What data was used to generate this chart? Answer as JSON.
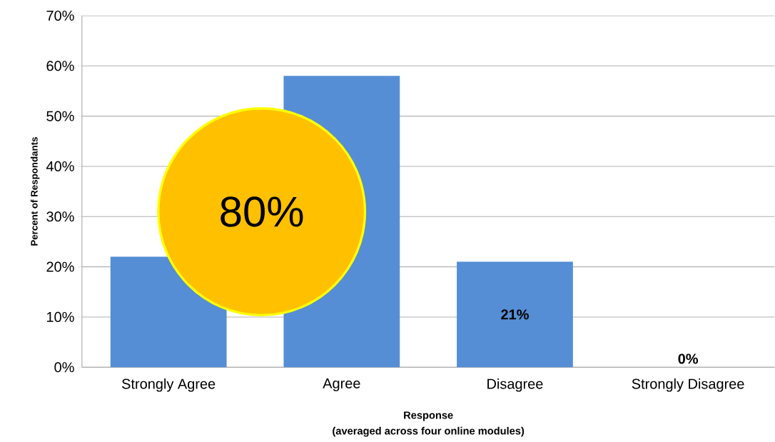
{
  "chart_data": {
    "type": "bar",
    "ylabel": "Percent of Respondants",
    "xlabel": "Response",
    "categories": [
      "Strongly Agree",
      "Agree",
      "Disagree",
      "Strongly Disagree"
    ],
    "values": [
      22,
      58,
      21,
      0
    ],
    "color": "#558ed5",
    "value_labels": [
      null,
      null,
      "21%",
      "0%"
    ],
    "ylim": [
      0,
      70
    ],
    "yticks": [
      {
        "value": 0,
        "label": "0%"
      },
      {
        "value": 10,
        "label": "10%"
      },
      {
        "value": 20,
        "label": "20%"
      },
      {
        "value": 30,
        "label": "30%"
      },
      {
        "value": 40,
        "label": "40%"
      },
      {
        "value": 50,
        "label": "50%"
      },
      {
        "value": 60,
        "label": "60%"
      },
      {
        "value": 70,
        "label": "70%"
      }
    ],
    "grid": "y",
    "annotations": [
      "80%",
      "(averaged across four online modules)"
    ]
  }
}
